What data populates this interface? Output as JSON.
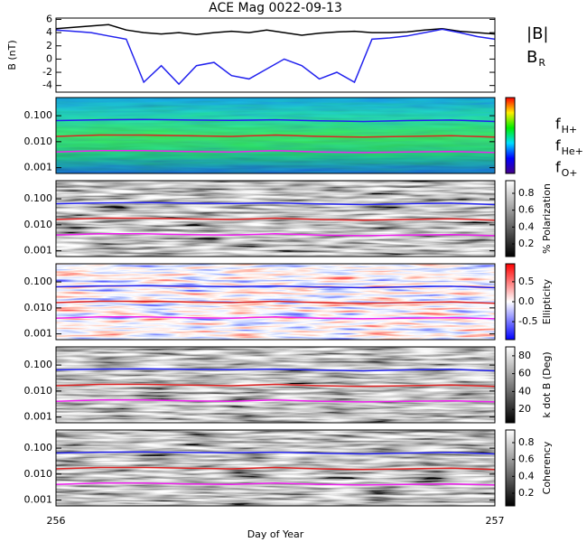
{
  "chart_data": [
    {
      "type": "line",
      "title": "ACE Mag 0022-09-13",
      "ylabel": "B (nT)",
      "x": [
        256,
        256.04,
        256.08,
        256.12,
        256.16,
        256.2,
        256.24,
        256.28,
        256.32,
        256.36,
        256.4,
        256.44,
        256.48,
        256.52,
        256.56,
        256.6,
        256.64,
        256.68,
        256.72,
        256.76,
        256.8,
        256.84,
        256.88,
        256.92,
        256.96,
        257
      ],
      "xlim": [
        256,
        257
      ],
      "ylim": [
        -5,
        6.2
      ],
      "yticks": [
        -4,
        -2,
        0,
        2,
        4,
        6
      ],
      "series": [
        {
          "name": "|B|",
          "color": "#000000",
          "values": [
            4.6,
            4.8,
            5.0,
            5.2,
            4.4,
            4.0,
            3.8,
            4.0,
            3.7,
            4.0,
            4.2,
            4.0,
            4.4,
            4.0,
            3.6,
            3.9,
            4.1,
            4.2,
            4.0,
            4.0,
            4.1,
            4.4,
            4.6,
            4.2,
            4.0,
            3.8
          ]
        },
        {
          "name": "B",
          "subscript": "R",
          "color": "#2222ee",
          "values": [
            4.4,
            4.2,
            4.0,
            3.5,
            3.0,
            -3.5,
            -1.0,
            -3.8,
            -1.0,
            -0.5,
            -2.5,
            -3.0,
            -1.5,
            0,
            -1.0,
            -3.0,
            -2.0,
            -3.5,
            3.0,
            3.2,
            3.5,
            4.0,
            4.5,
            4.0,
            3.4,
            3.0
          ]
        }
      ]
    },
    {
      "type": "spectrogram",
      "colormap": "rainbow",
      "log": true,
      "x": [
        256,
        256.1,
        256.2,
        256.3,
        256.4,
        256.5,
        256.6,
        256.7,
        256.8,
        256.9,
        257
      ],
      "xlim": [
        256,
        257
      ],
      "ylim": [
        0.0006,
        0.5
      ],
      "yticks": [
        {
          "value": 0.001,
          "label": "0.001"
        },
        {
          "value": 0.01,
          "label": "0.010"
        },
        {
          "value": 0.1,
          "label": "0.100"
        }
      ],
      "series": [
        {
          "name": "f",
          "subscript": "H+",
          "color": "#2222ee",
          "values": [
            0.065,
            0.07,
            0.072,
            0.068,
            0.066,
            0.07,
            0.064,
            0.06,
            0.065,
            0.068,
            0.06
          ]
        },
        {
          "name": "f",
          "subscript": "He+",
          "color": "#dd2222",
          "values": [
            0.016,
            0.018,
            0.018,
            0.017,
            0.016,
            0.018,
            0.016,
            0.015,
            0.016,
            0.017,
            0.015
          ]
        },
        {
          "name": "f",
          "subscript": "O+",
          "color": "#ee22ee",
          "values": [
            0.004,
            0.0045,
            0.0045,
            0.0042,
            0.004,
            0.0045,
            0.004,
            0.0038,
            0.004,
            0.0042,
            0.0038
          ]
        }
      ]
    },
    {
      "type": "spectrogram",
      "colormap": "gray",
      "log": true,
      "x": [
        256,
        256.1,
        256.2,
        256.3,
        256.4,
        256.5,
        256.6,
        256.7,
        256.8,
        256.9,
        257
      ],
      "xlim": [
        256,
        257
      ],
      "ylim": [
        0.0006,
        0.5
      ],
      "yticks": [
        {
          "value": 0.001,
          "label": "0.001"
        },
        {
          "value": 0.01,
          "label": "0.010"
        },
        {
          "value": 0.1,
          "label": "0.100"
        }
      ],
      "colorbar": {
        "label": "% Polarization",
        "lim": [
          0.05,
          0.95
        ],
        "ticks": [
          0.2,
          0.4,
          0.6,
          0.8
        ]
      },
      "series": [
        {
          "color": "#2222ee",
          "values": [
            0.065,
            0.07,
            0.072,
            0.068,
            0.066,
            0.07,
            0.064,
            0.06,
            0.065,
            0.068,
            0.06
          ]
        },
        {
          "color": "#dd2222",
          "values": [
            0.016,
            0.018,
            0.018,
            0.017,
            0.016,
            0.018,
            0.016,
            0.015,
            0.016,
            0.017,
            0.015
          ]
        },
        {
          "color": "#ee22ee",
          "values": [
            0.004,
            0.0045,
            0.0045,
            0.0042,
            0.004,
            0.0045,
            0.004,
            0.0038,
            0.004,
            0.0042,
            0.0038
          ]
        }
      ]
    },
    {
      "type": "spectrogram",
      "colormap": "rwb",
      "log": true,
      "x": [
        256,
        256.1,
        256.2,
        256.3,
        256.4,
        256.5,
        256.6,
        256.7,
        256.8,
        256.9,
        257
      ],
      "xlim": [
        256,
        257
      ],
      "ylim": [
        0.0006,
        0.5
      ],
      "yticks": [
        {
          "value": 0.001,
          "label": "0.001"
        },
        {
          "value": 0.01,
          "label": "0.010"
        },
        {
          "value": 0.1,
          "label": "0.100"
        }
      ],
      "colorbar": {
        "label": "Ellipticity",
        "lim": [
          -0.95,
          0.95
        ],
        "ticks": [
          -0.5,
          {
            "value": 0,
            "label": "0.0"
          },
          0.5
        ]
      },
      "series": [
        {
          "color": "#2222ee",
          "values": [
            0.065,
            0.07,
            0.072,
            0.068,
            0.066,
            0.07,
            0.064,
            0.06,
            0.065,
            0.068,
            0.06
          ]
        },
        {
          "color": "#dd2222",
          "values": [
            0.016,
            0.018,
            0.018,
            0.017,
            0.016,
            0.018,
            0.016,
            0.015,
            0.016,
            0.017,
            0.015
          ]
        },
        {
          "color": "#ee22ee",
          "values": [
            0.004,
            0.0045,
            0.0045,
            0.0042,
            0.004,
            0.0045,
            0.004,
            0.0038,
            0.004,
            0.0042,
            0.0038
          ]
        }
      ]
    },
    {
      "type": "spectrogram",
      "colormap": "gray",
      "log": true,
      "x": [
        256,
        256.1,
        256.2,
        256.3,
        256.4,
        256.5,
        256.6,
        256.7,
        256.8,
        256.9,
        257
      ],
      "xlim": [
        256,
        257
      ],
      "ylim": [
        0.0006,
        0.5
      ],
      "yticks": [
        {
          "value": 0.001,
          "label": "0.001"
        },
        {
          "value": 0.01,
          "label": "0.010"
        },
        {
          "value": 0.1,
          "label": "0.100"
        }
      ],
      "colorbar": {
        "label": "k dot B (Deg)",
        "lim": [
          5,
          90
        ],
        "ticks": [
          20,
          40,
          60,
          80
        ]
      },
      "series": [
        {
          "color": "#2222ee",
          "values": [
            0.065,
            0.07,
            0.072,
            0.068,
            0.066,
            0.07,
            0.064,
            0.06,
            0.065,
            0.068,
            0.06
          ]
        },
        {
          "color": "#dd2222",
          "values": [
            0.016,
            0.018,
            0.018,
            0.017,
            0.016,
            0.018,
            0.016,
            0.015,
            0.016,
            0.017,
            0.015
          ]
        },
        {
          "color": "#ee22ee",
          "values": [
            0.004,
            0.0045,
            0.0045,
            0.0042,
            0.004,
            0.0045,
            0.004,
            0.0038,
            0.004,
            0.0042,
            0.0038
          ]
        }
      ]
    },
    {
      "type": "spectrogram",
      "colormap": "gray",
      "log": true,
      "x": [
        256,
        256.1,
        256.2,
        256.3,
        256.4,
        256.5,
        256.6,
        256.7,
        256.8,
        256.9,
        257
      ],
      "xlim": [
        256,
        257
      ],
      "ylim": [
        0.0006,
        0.5
      ],
      "yticks": [
        {
          "value": 0.001,
          "label": "0.001"
        },
        {
          "value": 0.01,
          "label": "0.010"
        },
        {
          "value": 0.1,
          "label": "0.100"
        }
      ],
      "xticks": [
        256,
        257
      ],
      "xlabel": "Day of Year",
      "colorbar": {
        "label": "Coherency",
        "lim": [
          0.05,
          0.95
        ],
        "ticks": [
          0.2,
          0.4,
          0.6,
          0.8
        ]
      },
      "series": [
        {
          "color": "#2222ee",
          "values": [
            0.065,
            0.07,
            0.072,
            0.068,
            0.066,
            0.07,
            0.064,
            0.06,
            0.065,
            0.068,
            0.06
          ]
        },
        {
          "color": "#dd2222",
          "values": [
            0.016,
            0.018,
            0.018,
            0.017,
            0.016,
            0.018,
            0.016,
            0.015,
            0.016,
            0.017,
            0.015
          ]
        },
        {
          "color": "#ee22ee",
          "values": [
            0.004,
            0.0045,
            0.0045,
            0.0042,
            0.004,
            0.0045,
            0.004,
            0.0038,
            0.004,
            0.0042,
            0.0038
          ]
        }
      ]
    }
  ]
}
